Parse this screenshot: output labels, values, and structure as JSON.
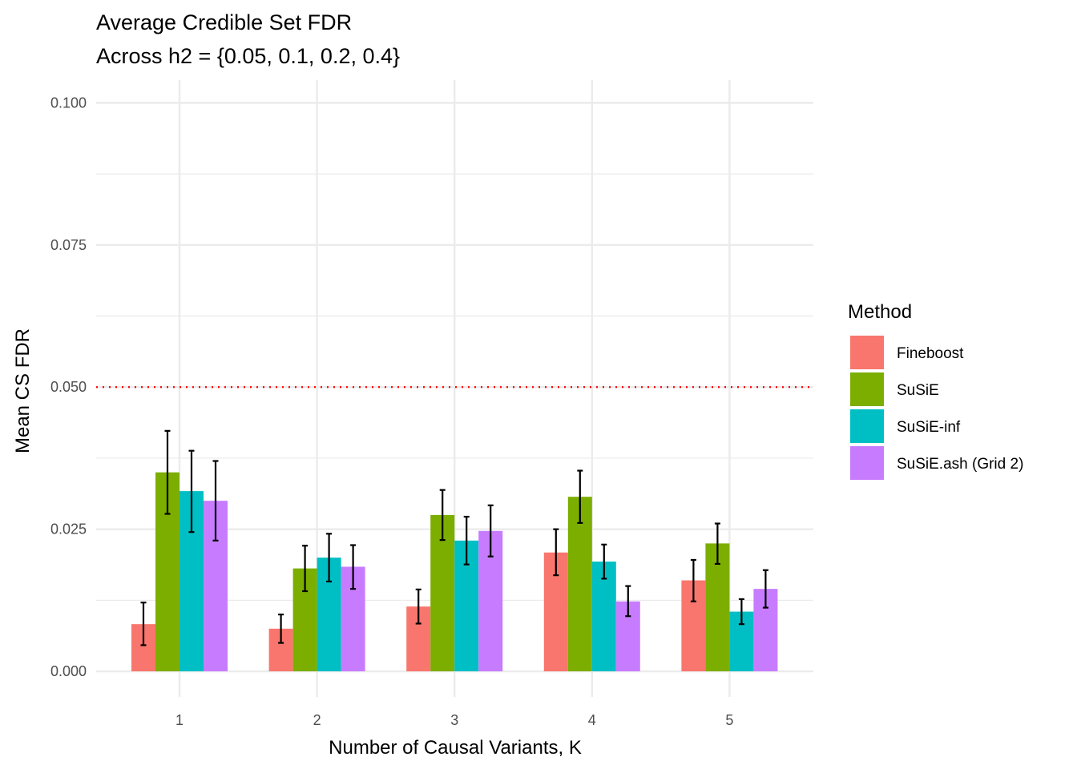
{
  "chart_data": {
    "type": "bar",
    "title": "Average Credible Set FDR",
    "subtitle": "Across h2 = {0.05, 0.1, 0.2, 0.4}",
    "xlabel": "Number of Causal Variants, K",
    "ylabel": "Mean CS FDR",
    "categories": [
      "1",
      "2",
      "3",
      "4",
      "5"
    ],
    "ylim": [
      -0.0045,
      0.104
    ],
    "yticks": [
      0.0,
      0.025,
      0.05,
      0.075,
      0.1
    ],
    "ytick_labels": [
      "0.000",
      "0.025",
      "0.050",
      "0.075",
      "0.100"
    ],
    "grid": true,
    "legend": {
      "title": "Method",
      "position": "right"
    },
    "reference_line": {
      "y": 0.05,
      "style": "dotted",
      "color": "#ff0000"
    },
    "series": [
      {
        "name": "Fineboost",
        "color": "#F8766D",
        "values": [
          0.0083,
          0.0075,
          0.0114,
          0.0209,
          0.016
        ],
        "err_low": [
          0.0046,
          0.005,
          0.0084,
          0.0169,
          0.0123
        ],
        "err_high": [
          0.0121,
          0.01,
          0.0144,
          0.025,
          0.0196
        ]
      },
      {
        "name": "SuSiE",
        "color": "#7CAE00",
        "values": [
          0.035,
          0.0181,
          0.0275,
          0.0307,
          0.0225
        ],
        "err_low": [
          0.0277,
          0.0141,
          0.0231,
          0.0261,
          0.0189
        ],
        "err_high": [
          0.0423,
          0.0221,
          0.0319,
          0.0353,
          0.026
        ]
      },
      {
        "name": "SuSiE-inf",
        "color": "#00BFC4",
        "values": [
          0.0317,
          0.02,
          0.023,
          0.0193,
          0.0105
        ],
        "err_low": [
          0.0245,
          0.0158,
          0.0188,
          0.0163,
          0.0083
        ],
        "err_high": [
          0.0388,
          0.0242,
          0.0272,
          0.0223,
          0.0127
        ]
      },
      {
        "name": "SuSiE.ash (Grid 2)",
        "color": "#C77CFF",
        "values": [
          0.03,
          0.0184,
          0.0247,
          0.0123,
          0.0145
        ],
        "err_low": [
          0.023,
          0.0145,
          0.0202,
          0.0097,
          0.0112
        ],
        "err_high": [
          0.037,
          0.0222,
          0.0292,
          0.015,
          0.0178
        ]
      }
    ]
  }
}
